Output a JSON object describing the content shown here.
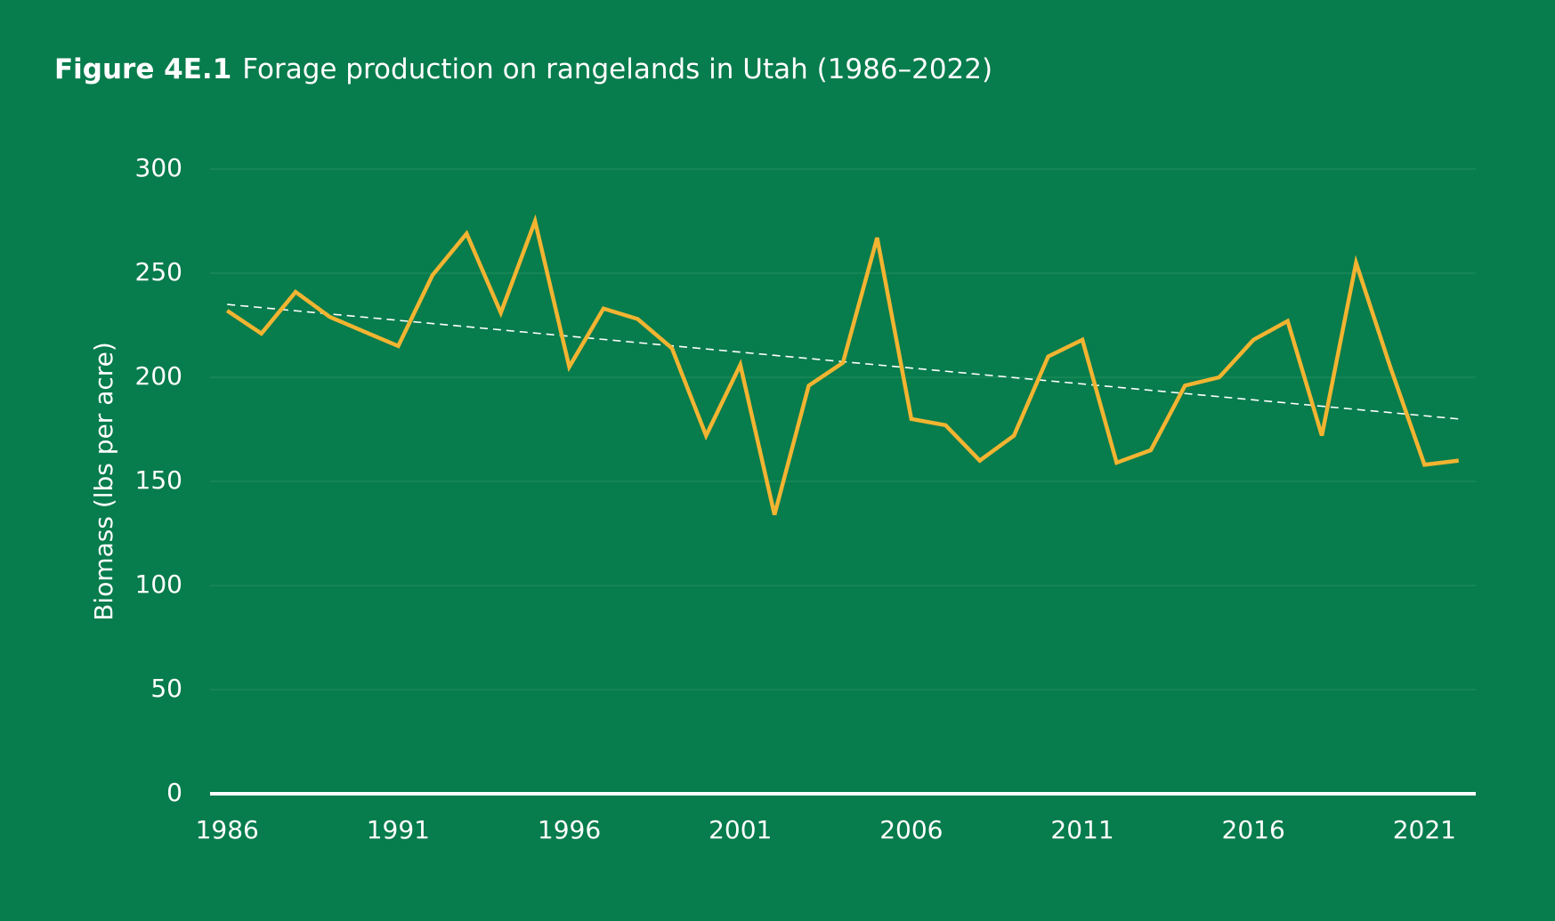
{
  "chart_data": {
    "type": "line",
    "figure_label": "Figure 4E.1",
    "title": "Forage production on rangelands in Utah (1986–2022)",
    "y_label": "Biomass (lbs per acre)",
    "x": [
      1986,
      1987,
      1988,
      1989,
      1990,
      1991,
      1992,
      1993,
      1994,
      1995,
      1996,
      1997,
      1998,
      1999,
      2000,
      2001,
      2002,
      2003,
      2004,
      2005,
      2006,
      2007,
      2008,
      2009,
      2010,
      2011,
      2012,
      2013,
      2014,
      2015,
      2016,
      2017,
      2018,
      2019,
      2020,
      2021,
      2022
    ],
    "series": [
      {
        "color": "#f2b431",
        "values": [
          232,
          221,
          241,
          229,
          222,
          215,
          249,
          269,
          231,
          275,
          205,
          233,
          228,
          214,
          172,
          206,
          134,
          196,
          207,
          267,
          180,
          177,
          160,
          172,
          210,
          218,
          159,
          165,
          196,
          200,
          218,
          227,
          172,
          255,
          205,
          158,
          160
        ]
      }
    ],
    "trendline": {
      "x": [
        1986,
        2022
      ],
      "values": [
        235,
        180
      ],
      "color": "#ffffff",
      "dashed": true
    },
    "xlim": [
      1985.5,
      2022.5
    ],
    "xticks": [
      1986,
      1991,
      1996,
      2001,
      2006,
      2011,
      2016,
      2021
    ],
    "ylim": [
      0,
      300
    ],
    "yticks": [
      0,
      50,
      100,
      150,
      200,
      250,
      300
    ],
    "grid": true,
    "background": "#077c4c"
  }
}
